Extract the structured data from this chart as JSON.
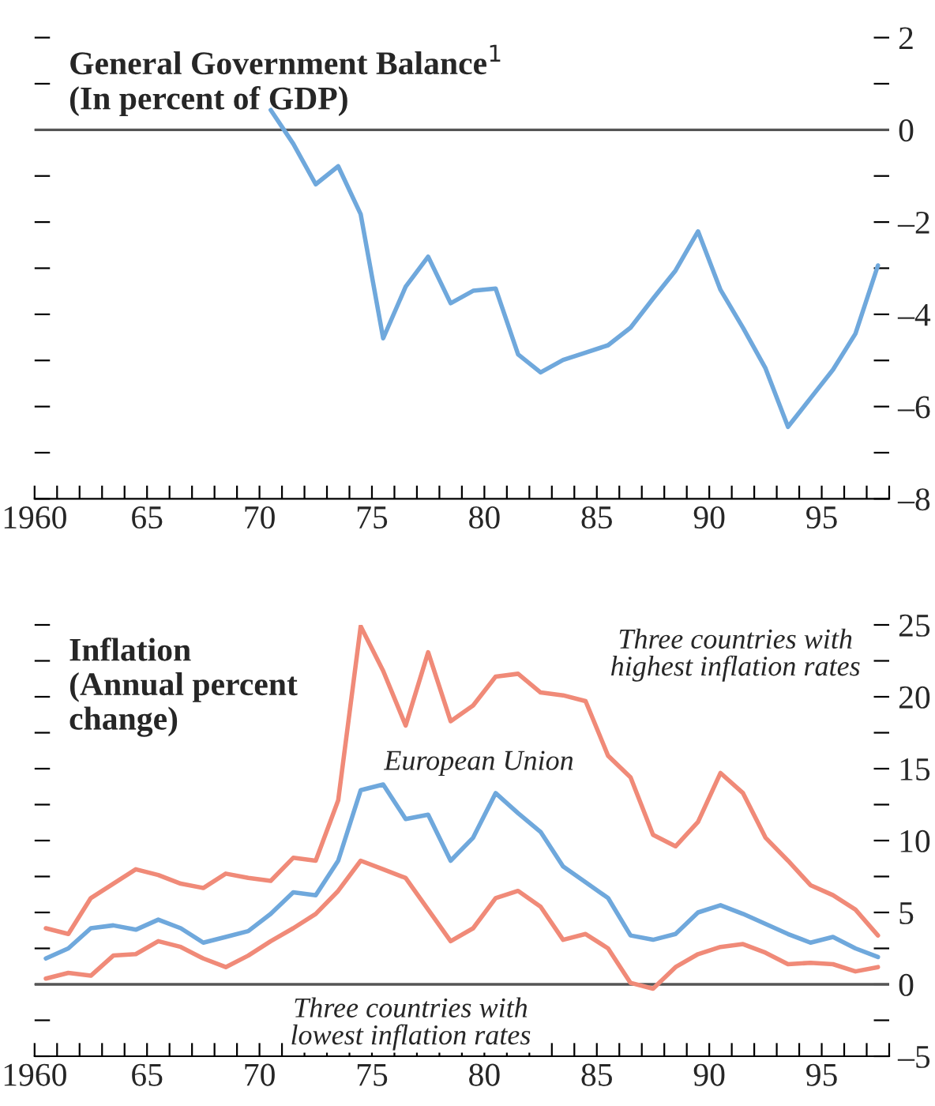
{
  "chart_data": [
    {
      "type": "line",
      "title": "General Government Balance$^{1}$\n(In percent of GDP)",
      "x": [
        1970.5,
        1971.5,
        1972.5,
        1973.5,
        1974.5,
        1975.5,
        1976.5,
        1977.5,
        1978.5,
        1979.5,
        1980.5,
        1981.5,
        1982.5,
        1983.5,
        1984.5,
        1985.5,
        1986.5,
        1987.5,
        1988.5,
        1989.5,
        1990.5,
        1991.5,
        1992.5,
        1993.5,
        1994.5,
        1995.5,
        1996.5,
        1997.5
      ],
      "series": [
        {
          "color": "#6fa8dc",
          "values": [
            0.43,
            -0.3,
            -1.18,
            -0.79,
            -1.83,
            -4.52,
            -3.4,
            -2.75,
            -3.76,
            -3.49,
            -3.44,
            -4.87,
            -5.26,
            -4.99,
            -4.83,
            -4.67,
            -4.29,
            -3.66,
            -3.05,
            -2.2,
            -3.47,
            -4.29,
            -5.17,
            -6.44,
            -5.82,
            -5.2,
            -4.42,
            -2.94
          ]
        }
      ],
      "xlim": [
        1960,
        1998
      ],
      "xticks": [
        {
          "value": 1960,
          "label": "1960"
        },
        {
          "value": 1961,
          "label": null
        },
        {
          "value": 1962,
          "label": null
        },
        {
          "value": 1963,
          "label": null
        },
        {
          "value": 1964,
          "label": null
        },
        {
          "value": 1965,
          "label": "65"
        },
        {
          "value": 1966,
          "label": null
        },
        {
          "value": 1967,
          "label": null
        },
        {
          "value": 1968,
          "label": null
        },
        {
          "value": 1969,
          "label": null
        },
        {
          "value": 1970,
          "label": "70"
        },
        {
          "value": 1971,
          "label": null
        },
        {
          "value": 1972,
          "label": null
        },
        {
          "value": 1973,
          "label": null
        },
        {
          "value": 1974,
          "label": null
        },
        {
          "value": 1975,
          "label": "75"
        },
        {
          "value": 1976,
          "label": null
        },
        {
          "value": 1977,
          "label": null
        },
        {
          "value": 1978,
          "label": null
        },
        {
          "value": 1979,
          "label": null
        },
        {
          "value": 1980,
          "label": "80"
        },
        {
          "value": 1981,
          "label": null
        },
        {
          "value": 1982,
          "label": null
        },
        {
          "value": 1983,
          "label": null
        },
        {
          "value": 1984,
          "label": null
        },
        {
          "value": 1985,
          "label": "85"
        },
        {
          "value": 1986,
          "label": null
        },
        {
          "value": 1987,
          "label": null
        },
        {
          "value": 1988,
          "label": null
        },
        {
          "value": 1989,
          "label": null
        },
        {
          "value": 1990,
          "label": "90"
        },
        {
          "value": 1991,
          "label": null
        },
        {
          "value": 1992,
          "label": null
        },
        {
          "value": 1993,
          "label": null
        },
        {
          "value": 1994,
          "label": null
        },
        {
          "value": 1995,
          "label": "95"
        },
        {
          "value": 1996,
          "label": null
        },
        {
          "value": 1997,
          "label": null
        },
        {
          "value": 1998,
          "label": null
        }
      ],
      "ylim": [
        -8,
        2
      ],
      "yticks": [
        {
          "value": 2,
          "label": "2"
        },
        {
          "value": 1,
          "label": null
        },
        {
          "value": 0,
          "label": "0"
        },
        {
          "value": -1,
          "label": null
        },
        {
          "value": -2,
          "label": "–2"
        },
        {
          "value": -3,
          "label": null
        },
        {
          "value": -4,
          "label": "–4"
        },
        {
          "value": -5,
          "label": null
        },
        {
          "value": -6,
          "label": "–6"
        },
        {
          "value": -7,
          "label": null
        },
        {
          "value": -8,
          "label": "–8"
        }
      ],
      "ref_lines": [
        {
          "axis": "y",
          "value": 0,
          "color": "#555555"
        }
      ],
      "grid": false,
      "legend": false,
      "marker": "none",
      "line_style": "solid"
    },
    {
      "type": "line",
      "title": "Inflation\n(Annual percent\nchange)",
      "x": [
        1960.5,
        1961.5,
        1962.5,
        1963.5,
        1964.5,
        1965.5,
        1966.5,
        1967.5,
        1968.5,
        1969.5,
        1970.5,
        1971.5,
        1972.5,
        1973.5,
        1974.5,
        1975.5,
        1976.5,
        1977.5,
        1978.5,
        1979.5,
        1980.5,
        1981.5,
        1982.5,
        1983.5,
        1984.5,
        1985.5,
        1986.5,
        1987.5,
        1988.5,
        1989.5,
        1990.5,
        1991.5,
        1992.5,
        1993.5,
        1994.5,
        1995.5,
        1996.5,
        1997.5
      ],
      "series": [
        {
          "name": "Three countries with\nhighest inflation rates",
          "color": "#f08a78",
          "values": [
            3.9,
            3.5,
            6.0,
            7.0,
            8.0,
            7.6,
            7.0,
            6.7,
            7.7,
            7.4,
            7.2,
            8.8,
            8.6,
            12.8,
            24.9,
            21.8,
            18.0,
            23.1,
            18.3,
            19.4,
            21.4,
            21.6,
            20.3,
            20.1,
            19.7,
            15.9,
            14.4,
            10.4,
            9.6,
            11.3,
            14.7,
            13.3,
            10.2,
            8.6,
            6.9,
            6.2,
            5.2,
            3.4
          ]
        },
        {
          "name": "European Union",
          "color": "#6fa8dc",
          "values": [
            1.8,
            2.5,
            3.9,
            4.1,
            3.8,
            4.5,
            3.9,
            2.9,
            3.3,
            3.7,
            4.9,
            6.4,
            6.2,
            8.6,
            13.5,
            13.9,
            11.5,
            11.8,
            8.6,
            10.2,
            13.3,
            11.9,
            10.6,
            8.2,
            7.1,
            6.0,
            3.4,
            3.1,
            3.5,
            5.0,
            5.5,
            4.9,
            4.2,
            3.5,
            2.9,
            3.3,
            2.5,
            1.9
          ]
        },
        {
          "name": "Three countries with\nlowest inflation rates",
          "color": "#f08a78",
          "values": [
            0.4,
            0.8,
            0.6,
            2.0,
            2.1,
            3.0,
            2.6,
            1.8,
            1.2,
            2.0,
            3.0,
            3.9,
            4.9,
            6.5,
            8.6,
            8.0,
            7.4,
            5.2,
            3.0,
            3.9,
            6.0,
            6.5,
            5.4,
            3.1,
            3.5,
            2.5,
            0.1,
            -0.3,
            1.2,
            2.1,
            2.6,
            2.8,
            2.2,
            1.4,
            1.5,
            1.4,
            0.9,
            1.2
          ]
        }
      ],
      "xlim": [
        1960,
        1998
      ],
      "xticks": [
        {
          "value": 1960,
          "label": "1960"
        },
        {
          "value": 1961,
          "label": null
        },
        {
          "value": 1962,
          "label": null
        },
        {
          "value": 1963,
          "label": null
        },
        {
          "value": 1964,
          "label": null
        },
        {
          "value": 1965,
          "label": "65"
        },
        {
          "value": 1966,
          "label": null
        },
        {
          "value": 1967,
          "label": null
        },
        {
          "value": 1968,
          "label": null
        },
        {
          "value": 1969,
          "label": null
        },
        {
          "value": 1970,
          "label": "70"
        },
        {
          "value": 1971,
          "label": null
        },
        {
          "value": 1972,
          "label": null
        },
        {
          "value": 1973,
          "label": null
        },
        {
          "value": 1974,
          "label": null
        },
        {
          "value": 1975,
          "label": "75"
        },
        {
          "value": 1976,
          "label": null
        },
        {
          "value": 1977,
          "label": null
        },
        {
          "value": 1978,
          "label": null
        },
        {
          "value": 1979,
          "label": null
        },
        {
          "value": 1980,
          "label": "80"
        },
        {
          "value": 1981,
          "label": null
        },
        {
          "value": 1982,
          "label": null
        },
        {
          "value": 1983,
          "label": null
        },
        {
          "value": 1984,
          "label": null
        },
        {
          "value": 1985,
          "label": "85"
        },
        {
          "value": 1986,
          "label": null
        },
        {
          "value": 1987,
          "label": null
        },
        {
          "value": 1988,
          "label": null
        },
        {
          "value": 1989,
          "label": null
        },
        {
          "value": 1990,
          "label": "90"
        },
        {
          "value": 1991,
          "label": null
        },
        {
          "value": 1992,
          "label": null
        },
        {
          "value": 1993,
          "label": null
        },
        {
          "value": 1994,
          "label": null
        },
        {
          "value": 1995,
          "label": "95"
        },
        {
          "value": 1996,
          "label": null
        },
        {
          "value": 1997,
          "label": null
        },
        {
          "value": 1998,
          "label": null
        }
      ],
      "ylim": [
        -5,
        25
      ],
      "yticks": [
        {
          "value": 25,
          "label": "25"
        },
        {
          "value": 22.5,
          "label": null
        },
        {
          "value": 20,
          "label": "20"
        },
        {
          "value": 17.5,
          "label": null
        },
        {
          "value": 15,
          "label": "15"
        },
        {
          "value": 12.5,
          "label": null
        },
        {
          "value": 10,
          "label": "10"
        },
        {
          "value": 7.5,
          "label": null
        },
        {
          "value": 5,
          "label": "5"
        },
        {
          "value": 2.5,
          "label": null
        },
        {
          "value": 0,
          "label": "0"
        },
        {
          "value": -2.5,
          "label": null
        },
        {
          "value": -5,
          "label": "–5"
        }
      ],
      "ref_lines": [
        {
          "axis": "y",
          "value": 0,
          "color": "#555555"
        }
      ],
      "grid": false,
      "legend": false,
      "marker": "none",
      "line_style": "solid"
    }
  ]
}
